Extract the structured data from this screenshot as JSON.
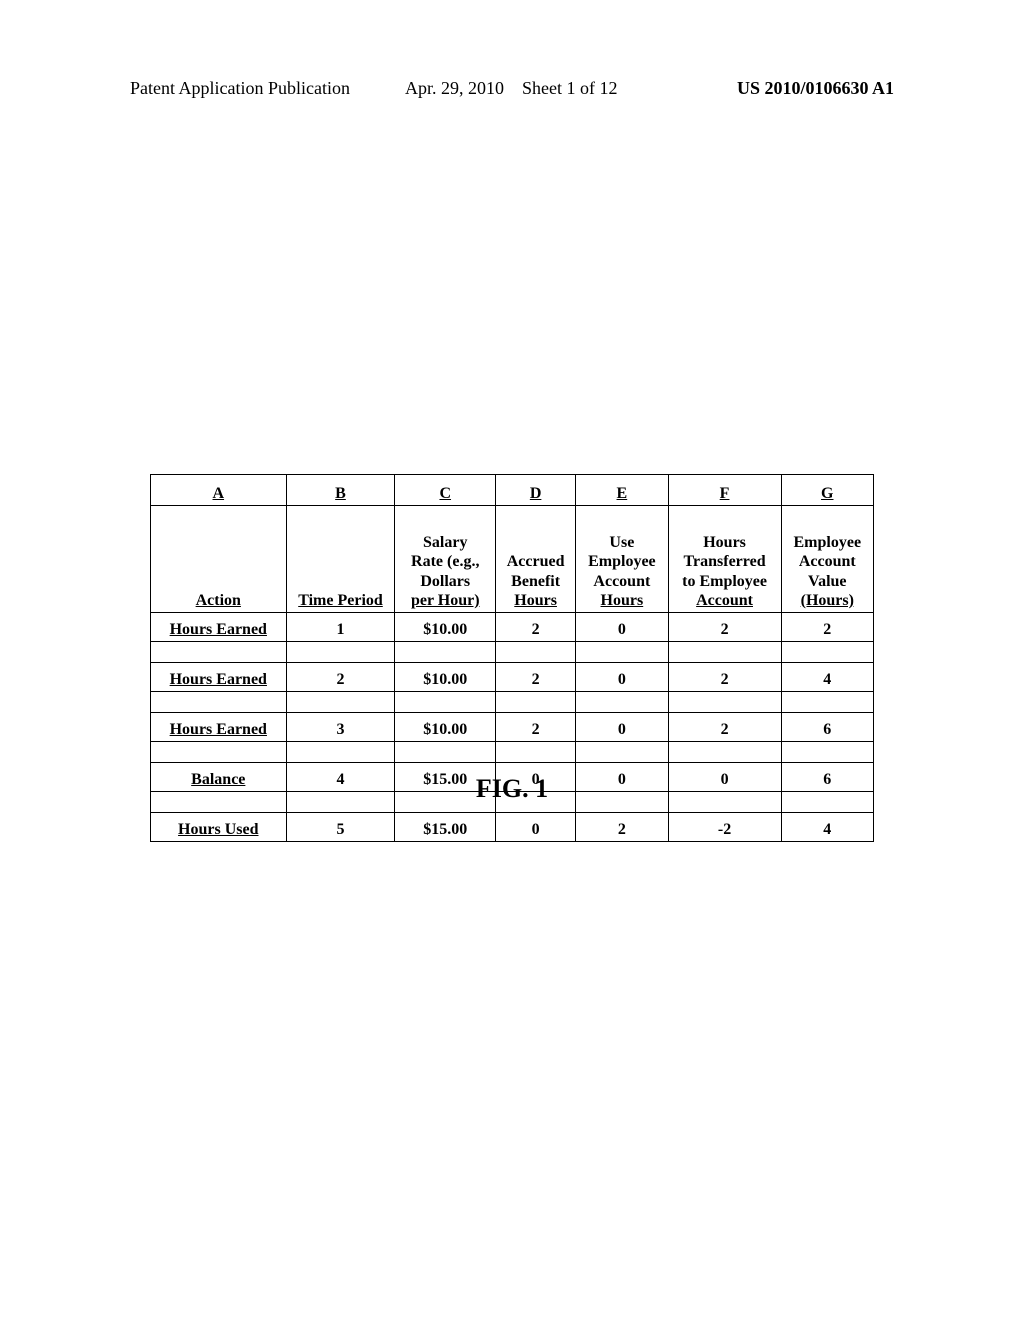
{
  "header": {
    "left": "Patent Application Publication",
    "date": "Apr. 29, 2010",
    "sheet": "Sheet 1 of 12",
    "pubnum": "US 2010/0106630 A1"
  },
  "table": {
    "column_letters": [
      "A",
      "B",
      "C",
      "D",
      "E",
      "F",
      "G"
    ],
    "column_headers": [
      "Action",
      "Time Period",
      "Salary Rate (e.g., Dollars per Hour)",
      "Accrued Benefit Hours",
      "Use Employee Account Hours",
      "Hours Transferred to Employee Account",
      "Employee Account Value (Hours)"
    ],
    "rows": [
      {
        "action": "Hours Earned",
        "cells": [
          "1",
          "$10.00",
          "2",
          "0",
          "2",
          "2"
        ]
      },
      {
        "action": "Hours Earned",
        "cells": [
          "2",
          "$10.00",
          "2",
          "0",
          "2",
          "4"
        ]
      },
      {
        "action": "Hours Earned",
        "cells": [
          "3",
          "$10.00",
          "2",
          "0",
          "2",
          "6"
        ]
      },
      {
        "action": "Balance",
        "cells": [
          "4",
          "$15.00",
          "0",
          "0",
          "0",
          "6"
        ]
      },
      {
        "action": "Hours Used",
        "cells": [
          "5",
          "$15.00",
          "0",
          "2",
          "-2",
          "4"
        ]
      }
    ]
  },
  "caption": "FIG. 1"
}
